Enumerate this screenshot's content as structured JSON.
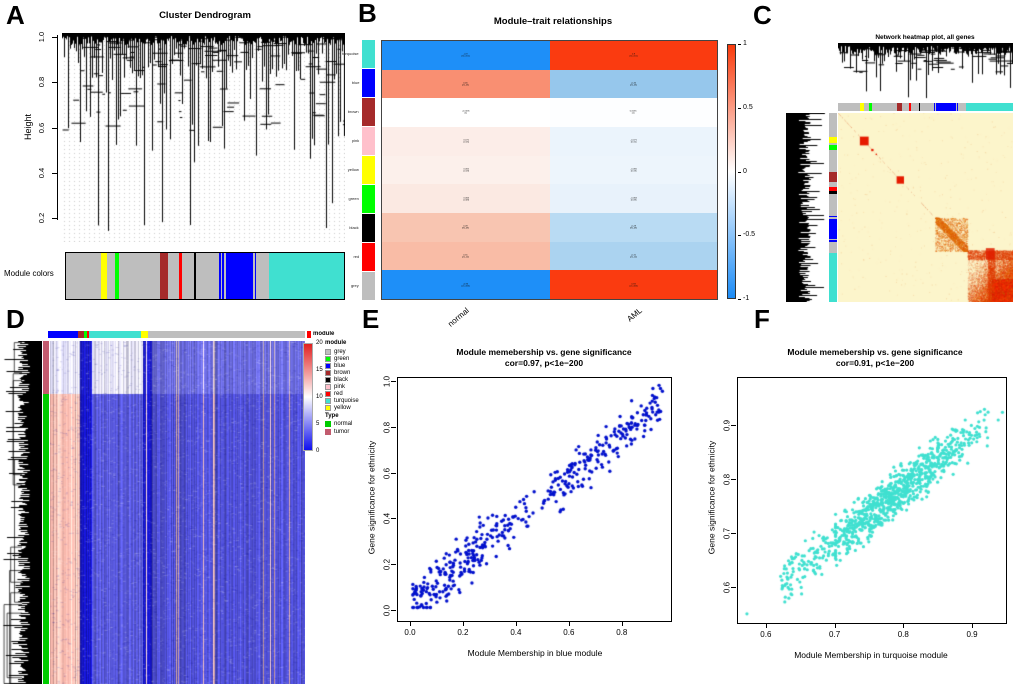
{
  "panels": {
    "A": {
      "letter": "A",
      "title": "Cluster Dendrogram",
      "ylabel": "Height",
      "yticks": [
        "1.0",
        "0.8",
        "0.6",
        "0.4",
        "0.2"
      ],
      "bar_label": "Module colors"
    },
    "B": {
      "letter": "B",
      "title": "Module–trait relationships",
      "columns": [
        "normal",
        "AML"
      ],
      "rows": [
        {
          "module": "turquoise",
          "swatch": "#40E0D0",
          "cells": [
            {
              "value": "-0.9",
              "p": "(3e-151)",
              "bg": "#1E8FF8"
            },
            {
              "value": "0.9",
              "p": "(3e-151)",
              "bg": "#FA3B10"
            }
          ]
        },
        {
          "module": "blue",
          "swatch": "#0000FF",
          "cells": [
            {
              "value": "0.46",
              "p": "(2e-23)",
              "bg": "#F98F72"
            },
            {
              "value": "-0.46",
              "p": "(2e-23)",
              "bg": "#96C7EC"
            }
          ]
        },
        {
          "module": "brown",
          "swatch": "#A52A2A",
          "cells": [
            {
              "value": "-0.0035",
              "p": "(1)",
              "bg": "#FFFFFF"
            },
            {
              "value": "0.0035",
              "p": "(1)",
              "bg": "#FDFEFF"
            }
          ]
        },
        {
          "module": "pink",
          "swatch": "#FFC0CB",
          "cells": [
            {
              "value": "0.071",
              "p": "(0.15)",
              "bg": "#FCEDE8"
            },
            {
              "value": "-0.071",
              "p": "(0.15)",
              "bg": "#EBF4FC"
            }
          ]
        },
        {
          "module": "yellow",
          "swatch": "#FFFF00",
          "cells": [
            {
              "value": "0.065",
              "p": "(0.19)",
              "bg": "#FCF0EB"
            },
            {
              "value": "-0.065",
              "p": "(0.19)",
              "bg": "#EDF5FC"
            }
          ]
        },
        {
          "module": "green",
          "swatch": "#00FF00",
          "cells": [
            {
              "value": "0.084",
              "p": "(0.09)",
              "bg": "#FBE9E2"
            },
            {
              "value": "-0.084",
              "p": "(0.09)",
              "bg": "#E8F2FB"
            }
          ]
        },
        {
          "module": "black",
          "swatch": "#000000",
          "cells": [
            {
              "value": "0.28",
              "p": "(9e-09)",
              "bg": "#F8C5B1"
            },
            {
              "value": "-0.28",
              "p": "(9e-09)",
              "bg": "#B9DBF3"
            }
          ]
        },
        {
          "module": "red",
          "swatch": "#FF0000",
          "cells": [
            {
              "value": "0.31",
              "p": "(2e-10)",
              "bg": "#F9BCA6"
            },
            {
              "value": "-0.31",
              "p": "(2e-10)",
              "bg": "#ABD3F0"
            }
          ]
        },
        {
          "module": "grey",
          "swatch": "#BEBEBE",
          "cells": [
            {
              "value": "-0.93",
              "p": "(2e-184)",
              "bg": "#1E8FF8"
            },
            {
              "value": "0.93",
              "p": "(2e-184)",
              "bg": "#FA3B10"
            }
          ]
        }
      ],
      "colorbar_ticks": [
        "1",
        "0.5",
        "0",
        "-0.5",
        "-1"
      ]
    },
    "C": {
      "letter": "C",
      "title": "Network heatmap plot, all genes"
    },
    "D": {
      "letter": "D",
      "top_legend_label": "module",
      "scale_ticks": [
        "20",
        "15",
        "10",
        "5",
        "0"
      ],
      "module_legend_title": "module",
      "module_legend": [
        {
          "name": "grey",
          "color": "#BEBEBE"
        },
        {
          "name": "green",
          "color": "#00FF00"
        },
        {
          "name": "blue",
          "color": "#0000FF"
        },
        {
          "name": "brown",
          "color": "#A52A2A"
        },
        {
          "name": "black",
          "color": "#000000"
        },
        {
          "name": "pink",
          "color": "#FFC0CB"
        },
        {
          "name": "red",
          "color": "#FF0000"
        },
        {
          "name": "turquoise",
          "color": "#40E0D0"
        },
        {
          "name": "yellow",
          "color": "#FFFF00"
        }
      ],
      "type_legend_title": "Type",
      "type_legend": [
        {
          "name": "normal",
          "color": "#00CC00"
        },
        {
          "name": "tumor",
          "color": "#C25B6E"
        }
      ]
    },
    "E": {
      "letter": "E",
      "title_line1": "Module memebership vs. gene significance",
      "title_line2": "cor=0.97, p<1e−200",
      "xlabel": "Module Membership in blue module",
      "ylabel": "Gene significance for ethnicity",
      "xticks": [
        "0.0",
        "0.2",
        "0.4",
        "0.6",
        "0.8"
      ],
      "yticks": [
        "0.0",
        "0.2",
        "0.4",
        "0.6",
        "0.8",
        "1.0"
      ],
      "point_color": "#0010CC"
    },
    "F": {
      "letter": "F",
      "title_line1": "Module memebership vs. gene significance",
      "title_line2": "cor=0.91, p<1e−200",
      "xlabel": "Module Membership in turquoise module",
      "ylabel": "Gene significance for ethnicity",
      "xticks": [
        "0.6",
        "0.7",
        "0.8",
        "0.9"
      ],
      "yticks": [
        "0.6",
        "0.7",
        "0.8",
        "0.9"
      ],
      "point_color": "#40E0D0"
    }
  },
  "chart_data": [
    {
      "id": "A",
      "type": "dendrogram",
      "title": "Cluster Dendrogram",
      "ylabel": "Height",
      "ylim": [
        0.1,
        1.0
      ],
      "yticks": [
        1.0,
        0.8,
        0.6,
        0.4,
        0.2
      ],
      "module_color_order": [
        "grey",
        "yellow",
        "grey",
        "green",
        "grey",
        "brown",
        "grey",
        "red",
        "grey",
        "black",
        "grey",
        "blue",
        "grey",
        "turquoise"
      ]
    },
    {
      "id": "B",
      "type": "heatmap",
      "title": "Module–trait relationships",
      "columns": [
        "normal",
        "AML"
      ],
      "rows": [
        "turquoise",
        "blue",
        "brown",
        "pink",
        "yellow",
        "green",
        "black",
        "red",
        "grey"
      ],
      "values": [
        [
          -0.9,
          0.9
        ],
        [
          0.46,
          -0.46
        ],
        [
          -0.0035,
          0.0035
        ],
        [
          0.071,
          -0.071
        ],
        [
          0.065,
          -0.065
        ],
        [
          0.084,
          -0.084
        ],
        [
          0.28,
          -0.28
        ],
        [
          0.31,
          -0.31
        ],
        [
          -0.93,
          0.93
        ]
      ],
      "colorbar_range": [
        -1,
        1
      ],
      "colorbar_ticks": [
        1,
        0.5,
        0,
        -0.5,
        -1
      ],
      "legend_position": "right"
    },
    {
      "id": "C",
      "type": "heatmap",
      "title": "Network heatmap plot, all genes",
      "description": "TOM network heatmap: pale yellow field, red module blocks on the diagonal, dense red turquoise block in bottom-right corner",
      "diagonal_blocks": [
        {
          "at": 0.13,
          "size": 0.05
        },
        {
          "at": 0.19,
          "size": 0.015
        },
        {
          "at": 0.34,
          "size": 0.04
        },
        {
          "at": 0.56,
          "size": 0.18
        },
        {
          "at": 0.74,
          "size": 0.26
        }
      ]
    },
    {
      "id": "D",
      "type": "heatmap",
      "scale_range": [
        0,
        20
      ],
      "scale_ticks": [
        20,
        15,
        10,
        5,
        0
      ],
      "modules": [
        "grey",
        "green",
        "blue",
        "brown",
        "black",
        "pink",
        "red",
        "turquoise",
        "yellow"
      ],
      "types": [
        "normal",
        "tumor"
      ],
      "row_blocks": {
        "tumor_fraction": 0.155,
        "normal_fraction": 0.845
      }
    },
    {
      "id": "E",
      "type": "scatter",
      "title": "Module memebership vs. gene significance",
      "subtitle": "cor=0.97, p<1e−200",
      "xlabel": "Module Membership in blue module",
      "ylabel": "Gene significance for ethnicity",
      "xlim": [
        0.0,
        0.95
      ],
      "ylim": [
        0.0,
        1.0
      ],
      "xticks": [
        0,
        0.2,
        0.4,
        0.6,
        0.8
      ],
      "yticks": [
        0,
        0.2,
        0.4,
        0.6,
        0.8,
        1
      ],
      "n_points": 430,
      "correlation": 0.97,
      "trend": "y ≈ x, tight positive linear band"
    },
    {
      "id": "F",
      "type": "scatter",
      "title": "Module memebership vs. gene significance",
      "subtitle": "cor=0.91, p<1e−200",
      "xlabel": "Module Membership in turquoise module",
      "ylabel": "Gene significance for ethnicity",
      "xlim": [
        0.57,
        0.95
      ],
      "ylim": [
        0.55,
        0.98
      ],
      "xticks": [
        0.6,
        0.7,
        0.8,
        0.9
      ],
      "yticks": [
        0.6,
        0.7,
        0.8,
        0.9
      ],
      "n_points": 950,
      "correlation": 0.91,
      "trend": "dense cloud in upper right, positive linear"
    }
  ]
}
